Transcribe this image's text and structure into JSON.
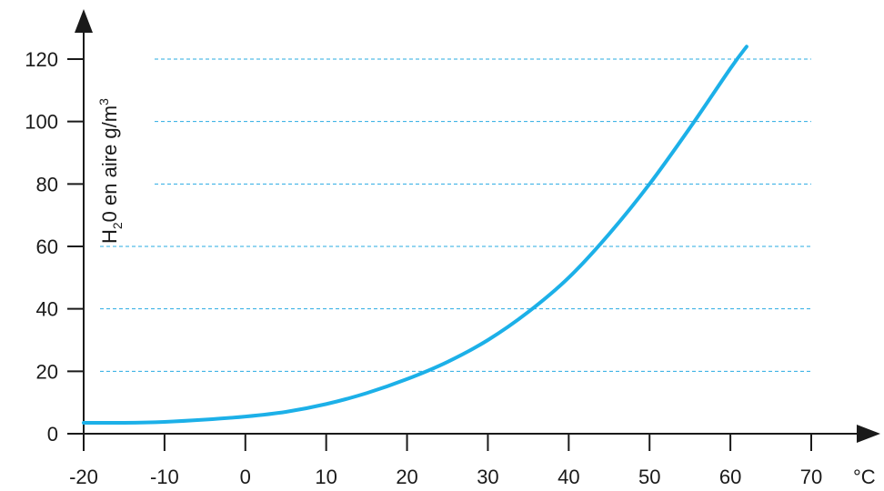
{
  "chart_data": {
    "type": "line",
    "xlabel": "°C",
    "ylabel": {
      "prefix": "H",
      "sub": "2",
      "middle": "0 en aire g/m",
      "sup": "3"
    },
    "xlim": [
      -20,
      70
    ],
    "ylim": [
      0,
      120
    ],
    "xticks": [
      -20,
      -10,
      0,
      10,
      20,
      30,
      40,
      50,
      60,
      70
    ],
    "yticks": [
      0,
      20,
      40,
      60,
      80,
      100,
      120
    ],
    "grid": {
      "axis": "y",
      "style": "dashed",
      "color": "#29abe2"
    },
    "series": [
      {
        "color": "#1cb0e8",
        "x": [
          -20,
          -15,
          -10,
          -5,
          0,
          5,
          10,
          15,
          20,
          25,
          30,
          35,
          40,
          45,
          50,
          55,
          60,
          62
        ],
        "y": [
          3.5,
          3.5,
          3.8,
          4.5,
          5.5,
          7,
          9.5,
          13,
          17.5,
          23,
          30,
          39,
          50,
          64,
          80,
          98,
          117,
          124
        ]
      }
    ]
  }
}
